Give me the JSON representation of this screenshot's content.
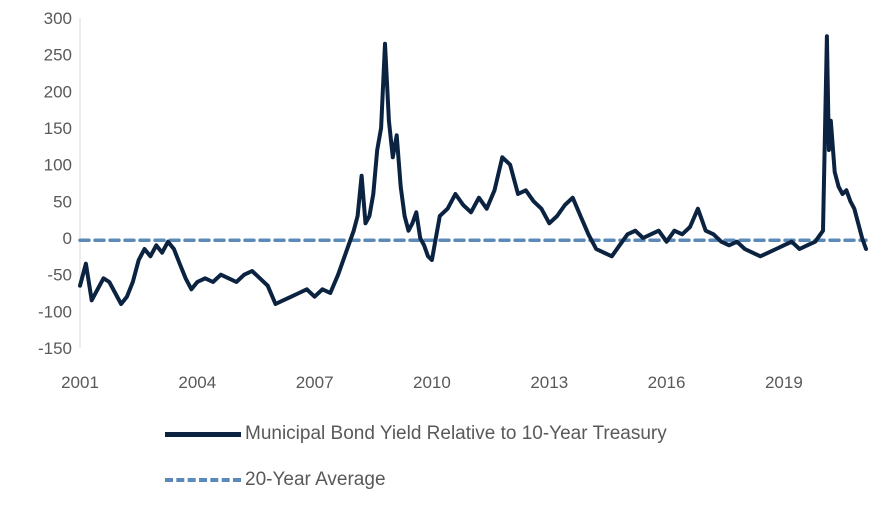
{
  "chart_data": {
    "type": "line",
    "title": "",
    "xlabel": "",
    "ylabel": "",
    "x_ticks": [
      "2001",
      "2004",
      "2007",
      "2010",
      "2013",
      "2016",
      "2019"
    ],
    "y_ticks": [
      "300",
      "250",
      "200",
      "150",
      "100",
      "50",
      "0",
      "-50",
      "-100",
      "-150"
    ],
    "xlim": [
      2001.0,
      2021.1
    ],
    "ylim": [
      -150,
      300
    ],
    "grid": false,
    "legend_position": "bottom",
    "series": [
      {
        "name": "Municipal Bond Yield Relative to 10-Year Treasury",
        "color": "#0b2341",
        "style": "solid",
        "x": [
          2001.0,
          2001.15,
          2001.3,
          2001.45,
          2001.6,
          2001.75,
          2001.9,
          2002.05,
          2002.2,
          2002.35,
          2002.5,
          2002.65,
          2002.8,
          2002.95,
          2003.1,
          2003.25,
          2003.4,
          2003.55,
          2003.7,
          2003.85,
          2004.0,
          2004.2,
          2004.4,
          2004.6,
          2004.8,
          2005.0,
          2005.2,
          2005.4,
          2005.6,
          2005.8,
          2006.0,
          2006.2,
          2006.4,
          2006.6,
          2006.8,
          2007.0,
          2007.2,
          2007.4,
          2007.6,
          2007.8,
          2008.0,
          2008.1,
          2008.2,
          2008.3,
          2008.4,
          2008.5,
          2008.6,
          2008.7,
          2008.8,
          2008.9,
          2009.0,
          2009.1,
          2009.2,
          2009.3,
          2009.4,
          2009.5,
          2009.6,
          2009.7,
          2009.8,
          2009.9,
          2010.0,
          2010.2,
          2010.4,
          2010.6,
          2010.8,
          2011.0,
          2011.2,
          2011.4,
          2011.6,
          2011.8,
          2012.0,
          2012.2,
          2012.4,
          2012.6,
          2012.8,
          2013.0,
          2013.2,
          2013.4,
          2013.6,
          2013.8,
          2014.0,
          2014.2,
          2014.4,
          2014.6,
          2014.8,
          2015.0,
          2015.2,
          2015.4,
          2015.6,
          2015.8,
          2016.0,
          2016.2,
          2016.4,
          2016.6,
          2016.8,
          2017.0,
          2017.2,
          2017.4,
          2017.6,
          2017.8,
          2018.0,
          2018.2,
          2018.4,
          2018.6,
          2018.8,
          2019.0,
          2019.2,
          2019.4,
          2019.6,
          2019.8,
          2020.0,
          2020.1,
          2020.15,
          2020.2,
          2020.3,
          2020.4,
          2020.5,
          2020.6,
          2020.7,
          2020.8,
          2020.9,
          2021.0,
          2021.1
        ],
        "y": [
          -65,
          -35,
          -85,
          -70,
          -55,
          -60,
          -75,
          -90,
          -80,
          -60,
          -30,
          -15,
          -25,
          -10,
          -20,
          -5,
          -15,
          -35,
          -55,
          -70,
          -60,
          -55,
          -60,
          -50,
          -55,
          -60,
          -50,
          -45,
          -55,
          -65,
          -90,
          -85,
          -80,
          -75,
          -70,
          -80,
          -70,
          -75,
          -50,
          -20,
          10,
          30,
          85,
          20,
          30,
          60,
          120,
          150,
          265,
          160,
          110,
          140,
          70,
          30,
          10,
          20,
          35,
          0,
          -10,
          -25,
          -30,
          30,
          40,
          60,
          45,
          35,
          55,
          40,
          65,
          110,
          100,
          60,
          65,
          50,
          40,
          20,
          30,
          45,
          55,
          30,
          5,
          -15,
          -20,
          -25,
          -10,
          5,
          10,
          0,
          5,
          10,
          -5,
          10,
          5,
          15,
          40,
          10,
          5,
          -5,
          -10,
          -5,
          -15,
          -20,
          -25,
          -20,
          -15,
          -10,
          -5,
          -15,
          -10,
          -5,
          10,
          275,
          120,
          160,
          90,
          70,
          60,
          65,
          50,
          40,
          20,
          0,
          -15
        ]
      },
      {
        "name": "20-Year Average",
        "color": "#5b8ab8",
        "style": "dashed",
        "x": [
          2001.0,
          2021.1
        ],
        "y": [
          -3,
          -3
        ]
      }
    ]
  }
}
